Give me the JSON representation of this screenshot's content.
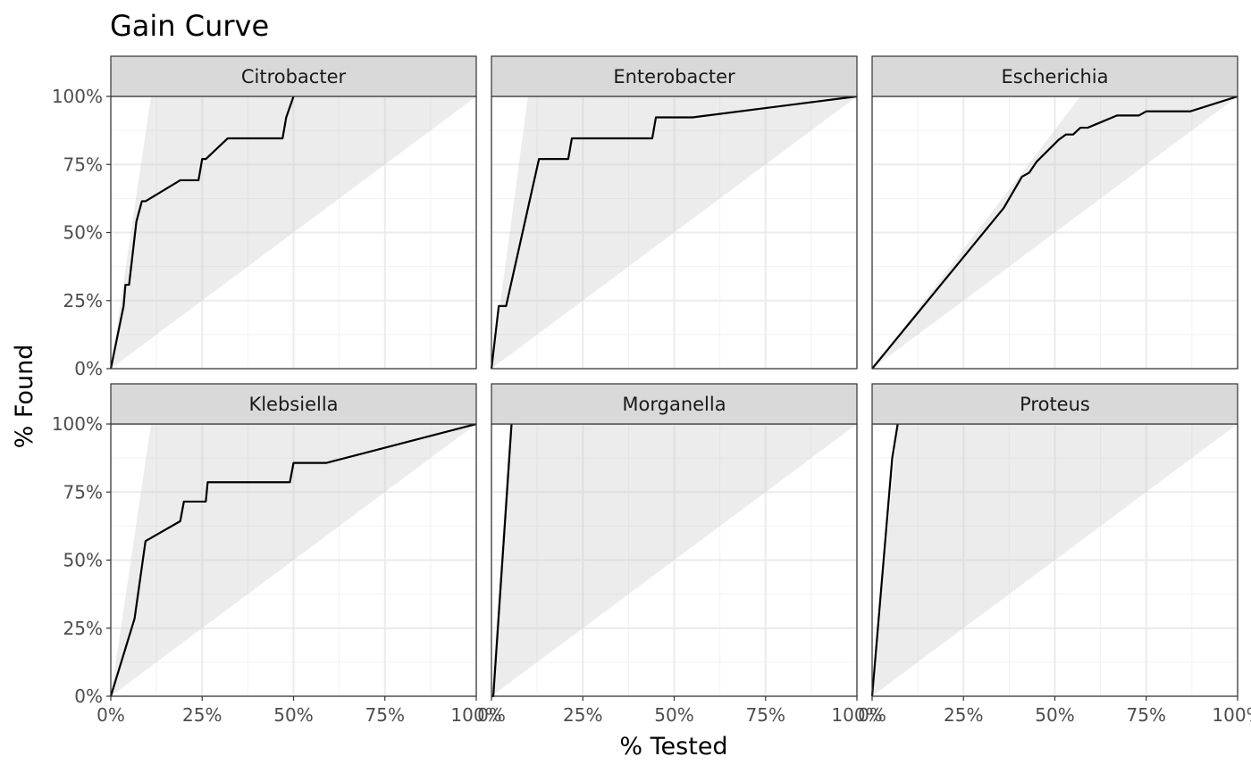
{
  "chart_data": {
    "type": "line",
    "title": "Gain Curve",
    "xlabel": "% Tested",
    "ylabel": "% Found",
    "xlim": [
      0,
      100
    ],
    "ylim": [
      0,
      100
    ],
    "x_ticks": [
      "0%",
      "25%",
      "50%",
      "75%",
      "100%"
    ],
    "y_ticks": [
      "0%",
      "25%",
      "50%",
      "75%",
      "100%"
    ],
    "grid": true,
    "facets": [
      {
        "name": "Citrobacter",
        "optimal_x": 11,
        "gain": [
          [
            0,
            0
          ],
          [
            3.5,
            23
          ],
          [
            4,
            30.8
          ],
          [
            5,
            30.8
          ],
          [
            7,
            54
          ],
          [
            8.5,
            61.5
          ],
          [
            9.5,
            61.5
          ],
          [
            19,
            69.2
          ],
          [
            24,
            69.2
          ],
          [
            25,
            77
          ],
          [
            26,
            77
          ],
          [
            32,
            84.6
          ],
          [
            47,
            84.6
          ],
          [
            48,
            92.3
          ],
          [
            50,
            100
          ]
        ]
      },
      {
        "name": "Enterobacter",
        "optimal_x": 10,
        "gain": [
          [
            0,
            0
          ],
          [
            2,
            23
          ],
          [
            4,
            23
          ],
          [
            13,
            77
          ],
          [
            21,
            77
          ],
          [
            22,
            84.6
          ],
          [
            44,
            84.6
          ],
          [
            45,
            92.3
          ],
          [
            55,
            92.3
          ],
          [
            100,
            100
          ]
        ]
      },
      {
        "name": "Escherichia",
        "optimal_x": 57,
        "gain": [
          [
            0,
            0
          ],
          [
            36,
            59
          ],
          [
            41,
            70.5
          ],
          [
            43,
            72
          ],
          [
            45,
            76
          ],
          [
            51,
            84
          ],
          [
            53,
            86
          ],
          [
            55,
            86
          ],
          [
            57,
            88.5
          ],
          [
            59,
            88.5
          ],
          [
            67,
            93
          ],
          [
            73,
            93
          ],
          [
            75,
            94.5
          ],
          [
            87,
            94.5
          ],
          [
            100,
            100
          ]
        ]
      },
      {
        "name": "Klebsiella",
        "optimal_x": 11,
        "gain": [
          [
            0,
            0
          ],
          [
            6.5,
            28.5
          ],
          [
            9.5,
            57
          ],
          [
            19,
            64.3
          ],
          [
            20,
            71.5
          ],
          [
            26,
            71.5
          ],
          [
            26.5,
            78.6
          ],
          [
            49,
            78.6
          ],
          [
            50,
            85.7
          ],
          [
            59,
            85.7
          ],
          [
            100,
            100
          ]
        ]
      },
      {
        "name": "Morganella",
        "optimal_x": 5,
        "gain": [
          [
            0,
            0
          ],
          [
            0.5,
            0
          ],
          [
            5.5,
            100
          ]
        ]
      },
      {
        "name": "Proteus",
        "optimal_x": 7,
        "gain": [
          [
            0,
            0
          ],
          [
            5.5,
            87.5
          ],
          [
            7,
            100
          ]
        ]
      }
    ]
  }
}
